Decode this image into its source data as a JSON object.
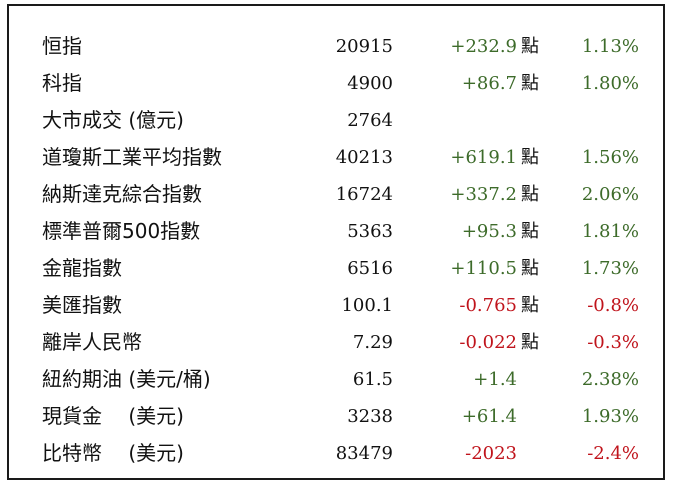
{
  "rows": [
    {
      "name": "恒指",
      "value": "20915",
      "change": "+232.9",
      "unit": "點",
      "pct": "1.13%",
      "dir": "up"
    },
    {
      "name": "科指",
      "value": "4900",
      "change": "+86.7",
      "unit": "點",
      "pct": "1.80%",
      "dir": "up"
    },
    {
      "name": "大市成交 (億元)",
      "value": "2764",
      "change": "",
      "unit": "",
      "pct": "",
      "dir": "up"
    },
    {
      "name": "道瓊斯工業平均指數",
      "value": "40213",
      "change": "+619.1",
      "unit": "點",
      "pct": "1.56%",
      "dir": "up"
    },
    {
      "name": "納斯達克綜合指數",
      "value": "16724",
      "change": "+337.2",
      "unit": "點",
      "pct": "2.06%",
      "dir": "up"
    },
    {
      "name": "標準普爾500指數",
      "value": "5363",
      "change": "+95.3",
      "unit": "點",
      "pct": "1.81%",
      "dir": "up"
    },
    {
      "name": "金龍指數",
      "value": "6516",
      "change": "+110.5",
      "unit": "點",
      "pct": "1.73%",
      "dir": "up"
    },
    {
      "name": "美匯指數",
      "value": "100.1",
      "change": "-0.765",
      "unit": "點",
      "pct": "-0.8%",
      "dir": "down"
    },
    {
      "name": "離岸人民幣",
      "value": "7.29",
      "change": "-0.022",
      "unit": "點",
      "pct": "-0.3%",
      "dir": "down"
    },
    {
      "name": "紐約期油 (美元/桶)",
      "value": "61.5",
      "change": "+1.4",
      "unit": "",
      "pct": "2.38%",
      "dir": "up"
    },
    {
      "name": "現貨金　 (美元)",
      "value": "3238",
      "change": "+61.4",
      "unit": "",
      "pct": "1.93%",
      "dir": "up"
    },
    {
      "name": "比特幣　 (美元)",
      "value": "83479",
      "change": "-2023",
      "unit": "",
      "pct": "-2.4%",
      "dir": "down"
    }
  ],
  "colors": {
    "up": "#3d6b2a",
    "down": "#c0141c"
  }
}
